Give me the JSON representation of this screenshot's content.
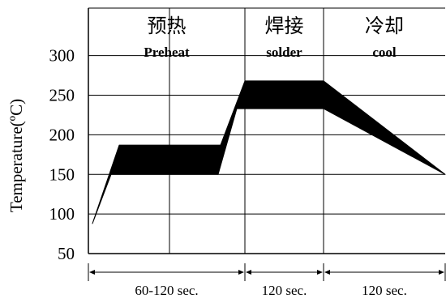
{
  "chart_data": {
    "type": "area",
    "ylabel": "Temperature(ºC)",
    "yticks": [
      50,
      100,
      150,
      200,
      250,
      300
    ],
    "ylim": [
      50,
      360
    ],
    "grid": true,
    "zones": [
      {
        "zh": "预热",
        "en": "Preheat",
        "duration": "60-120 sec.",
        "start": 0,
        "end": 193
      },
      {
        "zh": "焊接",
        "en": "solder",
        "duration": "120 sec.",
        "start": 193,
        "end": 290
      },
      {
        "zh": "冷却",
        "en": "cool",
        "duration": "120 sec.",
        "start": 290,
        "end": 440
      }
    ],
    "xlim": [
      0,
      440
    ],
    "inner_grid_x": [
      100
    ],
    "band": {
      "upper": [
        [
          5,
          88
        ],
        [
          38,
          187
        ],
        [
          163,
          187
        ],
        [
          193,
          268
        ],
        [
          290,
          268
        ],
        [
          440,
          150
        ]
      ],
      "lower": [
        [
          5,
          88
        ],
        [
          28,
          150
        ],
        [
          160,
          150
        ],
        [
          183,
          233
        ],
        [
          290,
          233
        ],
        [
          440,
          150
        ]
      ]
    }
  }
}
